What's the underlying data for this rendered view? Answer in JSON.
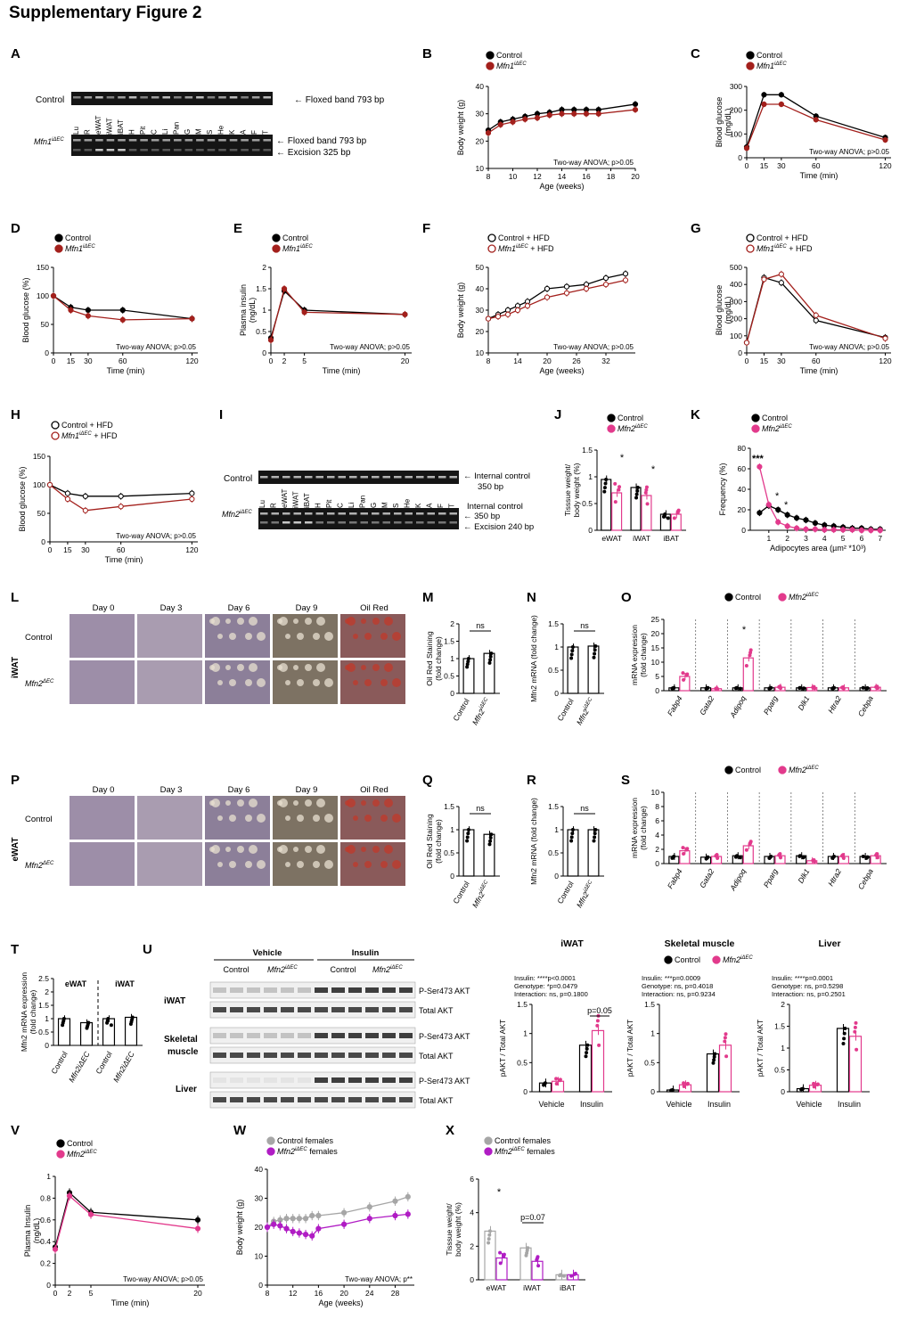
{
  "page_title": "Supplementary Figure 2",
  "panel_letters": [
    "A",
    "B",
    "C",
    "D",
    "E",
    "F",
    "G",
    "H",
    "I",
    "J",
    "K",
    "L",
    "M",
    "N",
    "O",
    "P",
    "Q",
    "R",
    "S",
    "T",
    "U",
    "V",
    "W",
    "X"
  ],
  "colors": {
    "control": "#000000",
    "mfn1": "#a3201c",
    "mfn2": "#e23a8c",
    "grey": "#a6a6a6",
    "purple": "#b01cc4"
  },
  "legend": {
    "control": "Control",
    "mfn1": "Mfn1",
    "mfn2": "Mfn2",
    "sup_iec": "iΔEC",
    "sup_dec": "ΔEC",
    "control_hfd": "Control + HFD",
    "mfn1_hfd_suffix": " + HFD",
    "control_females": "Control females",
    "females_suffix": " females"
  },
  "stats": {
    "anova_ns": "Two-way ANOVA; p>0.05",
    "anova_sig": "Two-way ANOVA; p**",
    "ns": "ns",
    "star": "*",
    "star3": "***",
    "p005": "p=0.05",
    "p007": "p=0.07",
    "u_iwat": [
      "Insulin: ****p<0.0001",
      "Genotype: *p=0.0479",
      "Interaction: ns, p=0.1800"
    ],
    "u_muscle": [
      "Insulin: ***p=0.0009",
      "Genotype: ns, p=0.4018",
      "Interaction: ns, p=0.9234"
    ],
    "u_liver": [
      "Insulin: ****p=0.0001",
      "Genotype: ns, p=0.5298",
      "Interaction: ns, p=0.2501"
    ]
  },
  "gel": {
    "row_control": "Control",
    "row_mfn1": "Mfn1",
    "row_mfn2": "Mfn2",
    "lanes_a": [
      "Lu",
      "R",
      "eWAT",
      "iWAT",
      "iBAT",
      "H",
      "Pit",
      "C",
      "Li",
      "Pan",
      "G",
      "M",
      "S",
      "He",
      "K",
      "A",
      "F",
      "T"
    ],
    "lanes_i": [
      "Lu",
      "R",
      "eWAT",
      "iWAT",
      "iBAT",
      "H",
      "Pit",
      "C",
      "Li",
      "Pan",
      "G",
      "M",
      "S",
      "He",
      "K",
      "A",
      "F",
      "T"
    ],
    "floxed": "Floxed band 793 bp",
    "excision_325": "Excision 325 bp",
    "internal": "Internal control",
    "bp350": "350 bp",
    "excision_240": "Excision 240 bp"
  },
  "micro": {
    "days": [
      "Day 0",
      "Day 3",
      "Day 6",
      "Day 9",
      "Oil Red"
    ],
    "side_iwat": "iWAT",
    "side_ewat": "eWAT",
    "row_control": "Control"
  },
  "western": {
    "group_vehicle": "Vehicle",
    "group_insulin": "Insulin",
    "sub_control": "Control",
    "sub_mfn2": "Mfn2",
    "tissues": [
      "iWAT",
      "Skeletal",
      "muscle",
      "Liver"
    ],
    "bands": [
      "P-Ser473 AKT",
      "Total AKT"
    ]
  },
  "axes": {
    "age_weeks": "Age (weeks)",
    "time_min": "Time (min)",
    "body_weight": "Body weight (g)",
    "blood_glucose": "Blood glucose",
    "mgdl": "(mg/dL)",
    "blood_glucose_pct": "Blood glucose (%)",
    "plasma_insulin": "Plasma insulin",
    "plasma_insulin_cap": "Plasma Insulin",
    "ngdl": "(ng/dL)",
    "tissue_weight": "Tisssue weight/",
    "body_weight_pct": "body weight (%)",
    "frequency": "Frequency (%)",
    "adipocyte_area": "Adipocytes area (µm² *10³)",
    "oil_red": "Oil Red Staining",
    "fold": "(fold change)",
    "mfn2_mrna": "Mfn2 mRNA (fold change)",
    "mrna_expr": "mRNA expression",
    "mfn2_mrna_expr": "Mfn2 mRNA expression",
    "pakt": "pAKT / Total AKT",
    "x_control": "Control",
    "x_vehicle": "Vehicle",
    "x_insulin": "Insulin",
    "ewat": "eWAT",
    "iwat": "iWAT",
    "ibat": "iBAT",
    "sub_iwat": "iWAT",
    "sub_muscle": "Skeletal muscle",
    "sub_liver": "Liver"
  },
  "genes": [
    "Fabp4",
    "Gata2",
    "Adipoq",
    "Pparg",
    "Dlk1",
    "Htra2",
    "Cebpa"
  ],
  "chart_data": [
    {
      "panel": "B",
      "type": "line",
      "xlabel": "Age (weeks)",
      "ylabel": "Body weight (g)",
      "xlim": [
        8,
        20
      ],
      "ylim": [
        10,
        40
      ],
      "series": [
        {
          "name": "Control",
          "x": [
            8,
            9,
            10,
            11,
            12,
            13,
            14,
            15,
            16,
            17,
            20
          ],
          "y": [
            24,
            27,
            28,
            29,
            30,
            30.5,
            31.5,
            31.5,
            31.5,
            31.5,
            33.5
          ]
        },
        {
          "name": "Mfn1 iΔEC",
          "x": [
            8,
            9,
            10,
            11,
            12,
            13,
            14,
            15,
            16,
            17,
            20
          ],
          "y": [
            23,
            26,
            27,
            28,
            28.5,
            29.5,
            30,
            30,
            30,
            30,
            31.5
          ]
        }
      ],
      "stat": "Two-way ANOVA; p>0.05"
    },
    {
      "panel": "C",
      "type": "line",
      "xlabel": "Time (min)",
      "ylabel": "Blood glucose (mg/dL)",
      "ylim": [
        0,
        300
      ],
      "series": [
        {
          "name": "Control",
          "x": [
            0,
            15,
            30,
            60,
            120
          ],
          "y": [
            45,
            265,
            265,
            175,
            85
          ]
        },
        {
          "name": "Mfn1 iΔEC",
          "x": [
            0,
            15,
            30,
            60,
            120
          ],
          "y": [
            40,
            225,
            225,
            160,
            75
          ]
        }
      ],
      "stat": "Two-way ANOVA; p>0.05"
    },
    {
      "panel": "D",
      "type": "line",
      "xlabel": "Time (min)",
      "ylabel": "Blood glucose (%)",
      "ylim": [
        0,
        150
      ],
      "series": [
        {
          "name": "Control",
          "x": [
            0,
            15,
            30,
            60,
            120
          ],
          "y": [
            100,
            80,
            75,
            75,
            60
          ]
        },
        {
          "name": "Mfn1 iΔEC",
          "x": [
            0,
            15,
            30,
            60,
            120
          ],
          "y": [
            100,
            75,
            65,
            58,
            60
          ]
        }
      ],
      "stat": "Two-way ANOVA; p>0.05"
    },
    {
      "panel": "E",
      "type": "line",
      "xlabel": "Time (min)",
      "ylabel": "Plasma insulin (ng/dL)",
      "ylim": [
        0,
        2
      ],
      "series": [
        {
          "name": "Control",
          "x": [
            0,
            2,
            5,
            20
          ],
          "y": [
            0.35,
            1.45,
            1.0,
            0.9
          ]
        },
        {
          "name": "Mfn1 iΔEC",
          "x": [
            0,
            2,
            5,
            20
          ],
          "y": [
            0.3,
            1.5,
            0.95,
            0.9
          ]
        }
      ],
      "stat": "Two-way ANOVA; p>0.05"
    },
    {
      "panel": "F",
      "type": "line",
      "xlabel": "Age (weeks)",
      "ylabel": "Body weight (g)",
      "ylim": [
        10,
        50
      ],
      "series": [
        {
          "name": "Control + HFD",
          "x": [
            8,
            10,
            12,
            14,
            16,
            20,
            24,
            28,
            32,
            36
          ],
          "y": [
            26,
            28,
            30,
            32,
            34,
            40,
            41,
            42,
            45,
            47
          ]
        },
        {
          "name": "Mfn1 iΔEC + HFD",
          "x": [
            8,
            10,
            12,
            14,
            16,
            20,
            24,
            28,
            32,
            36
          ],
          "y": [
            26,
            27,
            28,
            30,
            32,
            36,
            38,
            40,
            42,
            44
          ]
        }
      ],
      "stat": "Two-way ANOVA; p>0.05"
    },
    {
      "panel": "G",
      "type": "line",
      "xlabel": "Time (min)",
      "ylabel": "Blood glucose (mg/dL)",
      "ylim": [
        0,
        500
      ],
      "series": [
        {
          "name": "Control + HFD",
          "x": [
            0,
            15,
            30,
            60,
            120
          ],
          "y": [
            60,
            440,
            410,
            190,
            90
          ]
        },
        {
          "name": "Mfn1 iΔEC + HFD",
          "x": [
            0,
            15,
            30,
            60,
            120
          ],
          "y": [
            60,
            430,
            460,
            220,
            85
          ]
        }
      ],
      "stat": "Two-way ANOVA; p>0.05"
    },
    {
      "panel": "H",
      "type": "line",
      "xlabel": "Time (min)",
      "ylabel": "Blood glucose (%)",
      "ylim": [
        0,
        150
      ],
      "series": [
        {
          "name": "Control + HFD",
          "x": [
            0,
            15,
            30,
            60,
            120
          ],
          "y": [
            100,
            85,
            80,
            80,
            85
          ]
        },
        {
          "name": "Mfn1 iΔEC + HFD",
          "x": [
            0,
            15,
            30,
            60,
            120
          ],
          "y": [
            100,
            75,
            55,
            62,
            75
          ]
        }
      ],
      "stat": "Two-way ANOVA; p>0.05"
    },
    {
      "panel": "J",
      "type": "bar",
      "categories": [
        "eWAT",
        "iWAT",
        "iBAT"
      ],
      "ylabel": "Tisssue weight/ body weight (%)",
      "ylim": [
        0,
        1.5
      ],
      "series": [
        {
          "name": "Control",
          "values": [
            0.95,
            0.8,
            0.3
          ]
        },
        {
          "name": "Mfn2 iΔEC",
          "values": [
            0.7,
            0.65,
            0.3
          ]
        }
      ]
    },
    {
      "panel": "K",
      "type": "line",
      "xlabel": "Adipocytes area (µm² *10³)",
      "ylabel": "Frequency (%)",
      "ylim": [
        0,
        80
      ],
      "series": [
        {
          "name": "Control",
          "x": [
            0.5,
            1,
            1.5,
            2,
            2.5,
            3,
            3.5,
            4,
            4.5,
            5,
            5.5,
            6,
            6.5,
            7
          ],
          "y": [
            17,
            24,
            20,
            15,
            12,
            10,
            7,
            5,
            4,
            3,
            2,
            2,
            1,
            1
          ]
        },
        {
          "name": "Mfn2 iΔEC",
          "x": [
            0.5,
            1,
            1.5,
            2,
            2.5,
            3,
            3.5,
            4,
            4.5,
            5,
            5.5,
            6,
            6.5,
            7
          ],
          "y": [
            62,
            25,
            8,
            4,
            2,
            1,
            1,
            0.5,
            0.5,
            0.5,
            0.5,
            0,
            0,
            0
          ]
        }
      ]
    },
    {
      "panel": "M",
      "type": "bar",
      "categories": [
        "Control",
        "Mfn2 iΔEC"
      ],
      "ylabel": "Oil Red Staining (fold change)",
      "ylim": [
        0,
        2
      ],
      "values": [
        1.0,
        1.15
      ]
    },
    {
      "panel": "N",
      "type": "bar",
      "categories": [
        "Control",
        "Mfn2 iΔEC"
      ],
      "ylabel": "Mfn2 mRNA (fold change)",
      "ylim": [
        0,
        1.5
      ],
      "values": [
        1.0,
        1.02
      ]
    },
    {
      "panel": "O",
      "type": "bar",
      "categories": [
        "Fabp4",
        "Gata2",
        "Adipoq",
        "Pparg",
        "Dlk1",
        "Htra2",
        "Cebpa"
      ],
      "ylabel": "mRNA expression (fold change)",
      "ylim": [
        0,
        25
      ],
      "series": [
        {
          "name": "Control",
          "values": [
            1,
            1,
            1,
            1,
            1,
            1,
            1
          ]
        },
        {
          "name": "Mfn2 iΔEC",
          "values": [
            5,
            0.7,
            11.5,
            1.2,
            1.1,
            1,
            1.2
          ]
        }
      ]
    },
    {
      "panel": "Q",
      "type": "bar",
      "categories": [
        "Control",
        "Mfn2 iΔEC"
      ],
      "ylabel": "Oil Red Staining (fold change)",
      "ylim": [
        0,
        1.5
      ],
      "values": [
        1.0,
        0.9
      ]
    },
    {
      "panel": "R",
      "type": "bar",
      "categories": [
        "Control",
        "Mfn2 iΔEC"
      ],
      "ylabel": "Mfn2 mRNA (fold change)",
      "ylim": [
        0,
        1.5
      ],
      "values": [
        1.0,
        1.0
      ]
    },
    {
      "panel": "S",
      "type": "bar",
      "categories": [
        "Fabp4",
        "Gata2",
        "Adipoq",
        "Pparg",
        "Dlk1",
        "Htra2",
        "Cebpa"
      ],
      "ylabel": "mRNA expression (fold change)",
      "ylim": [
        0,
        10
      ],
      "series": [
        {
          "name": "Control",
          "values": [
            1,
            0.9,
            1.1,
            1,
            1.1,
            1,
            1
          ]
        },
        {
          "name": "Mfn2 iΔEC",
          "values": [
            1.8,
            1,
            2.5,
            1.1,
            0.4,
            1,
            1.1
          ]
        }
      ]
    },
    {
      "panel": "T",
      "type": "bar",
      "categories": [
        "eWAT Control",
        "eWAT Mfn2 iΔEC",
        "iWAT Control",
        "iWAT Mfn2 iΔEC"
      ],
      "ylabel": "Mfn2 mRNA expression (fold change)",
      "ylim": [
        0,
        2.5
      ],
      "values": [
        1.0,
        0.85,
        1.0,
        1.05
      ]
    },
    {
      "panel": "U-iWAT",
      "type": "bar",
      "categories": [
        "Vehicle",
        "Insulin"
      ],
      "ylabel": "pAKT / Total AKT",
      "ylim": [
        0,
        1.5
      ],
      "series": [
        {
          "name": "Control",
          "values": [
            0.15,
            0.8
          ]
        },
        {
          "name": "Mfn2 iΔEC",
          "values": [
            0.18,
            1.05
          ]
        }
      ]
    },
    {
      "panel": "U-Skeletal muscle",
      "type": "bar",
      "categories": [
        "Vehicle",
        "Insulin"
      ],
      "ylabel": "pAKT / Total AKT",
      "ylim": [
        0,
        1.5
      ],
      "series": [
        {
          "name": "Control",
          "values": [
            0.03,
            0.65
          ]
        },
        {
          "name": "Mfn2 iΔEC",
          "values": [
            0.12,
            0.8
          ]
        }
      ]
    },
    {
      "panel": "U-Liver",
      "type": "bar",
      "categories": [
        "Vehicle",
        "Insulin"
      ],
      "ylabel": "pAKT / Total AKT",
      "ylim": [
        0,
        2
      ],
      "series": [
        {
          "name": "Control",
          "values": [
            0.07,
            1.45
          ]
        },
        {
          "name": "Mfn2 iΔEC",
          "values": [
            0.15,
            1.27
          ]
        }
      ]
    },
    {
      "panel": "V",
      "type": "line",
      "xlabel": "Time (min)",
      "ylabel": "Plasma Insulin (ng/dL)",
      "ylim": [
        0,
        1
      ],
      "series": [
        {
          "name": "Control",
          "x": [
            0,
            2,
            5,
            20
          ],
          "y": [
            0.35,
            0.85,
            0.67,
            0.6
          ]
        },
        {
          "name": "Mfn2 iΔEC",
          "x": [
            0,
            2,
            5,
            20
          ],
          "y": [
            0.33,
            0.82,
            0.65,
            0.52
          ]
        }
      ],
      "stat": "Two-way ANOVA; p>0.05"
    },
    {
      "panel": "W",
      "type": "line",
      "xlabel": "Age (weeks)",
      "ylabel": "Body weight (g)",
      "ylim": [
        0,
        40
      ],
      "series": [
        {
          "name": "Control females",
          "x": [
            8,
            9,
            10,
            11,
            12,
            13,
            14,
            15,
            16,
            20,
            24,
            28,
            30
          ],
          "y": [
            20,
            22,
            22.5,
            23,
            23,
            23,
            23,
            24,
            24,
            25,
            27,
            29,
            30.5
          ]
        },
        {
          "name": "Mfn2 iΔEC females",
          "x": [
            8,
            9,
            10,
            11,
            12,
            13,
            14,
            15,
            16,
            20,
            24,
            28,
            30
          ],
          "y": [
            20,
            21,
            20.5,
            19.5,
            18.5,
            18,
            17.5,
            17,
            19.5,
            21,
            23,
            24,
            24.5
          ]
        }
      ],
      "stat": "Two-way ANOVA; p**"
    },
    {
      "panel": "X",
      "type": "bar",
      "categories": [
        "eWAT",
        "iWAT",
        "iBAT"
      ],
      "ylabel": "Tisssue weight/ body weight (%)",
      "ylim": [
        0,
        6
      ],
      "series": [
        {
          "name": "Control females",
          "values": [
            2.9,
            1.9,
            0.3
          ]
        },
        {
          "name": "Mfn2 iΔEC females",
          "values": [
            1.3,
            1.1,
            0.3
          ]
        }
      ]
    }
  ]
}
